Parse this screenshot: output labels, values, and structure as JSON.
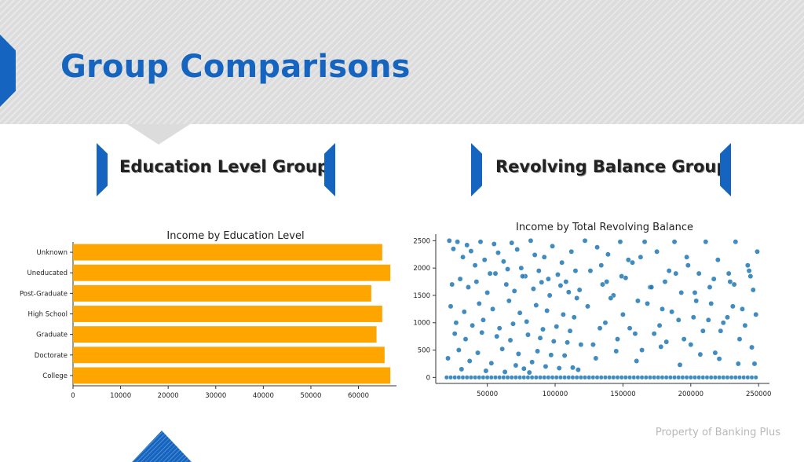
{
  "slide": {
    "title": "Group Comparisons",
    "left_section": "Education Level Group",
    "right_section": "Revolving Balance Group",
    "footer": "Property of Banking Plus"
  },
  "colors": {
    "accent": "#1565c0",
    "bar": "#ffa500",
    "scatter": "#1f77b4"
  },
  "chart_data": [
    {
      "type": "bar",
      "orientation": "horizontal",
      "title": "Income by Education Level",
      "categories": [
        "Unknown",
        "Uneducated",
        "Post-Graduate",
        "High School",
        "Graduate",
        "Doctorate",
        "College"
      ],
      "values": [
        65000,
        66700,
        62700,
        65000,
        63800,
        65500,
        66700
      ],
      "xlim": [
        0,
        68000
      ],
      "xticks": [
        0,
        10000,
        20000,
        30000,
        40000,
        50000,
        60000
      ],
      "xlabel": "",
      "ylabel": ""
    },
    {
      "type": "scatter",
      "title": "Income by Total Revolving Balance",
      "xlim": [
        12000,
        258000
      ],
      "ylim": [
        -110,
        2620
      ],
      "xticks": [
        50000,
        100000,
        150000,
        200000,
        250000
      ],
      "yticks": [
        0,
        500,
        1000,
        1500,
        2000,
        2500
      ],
      "xlabel": "",
      "ylabel": "",
      "series": [
        {
          "x": [
            22000,
            25000,
            28000,
            32000,
            35000,
            38000,
            41000,
            45000,
            48000,
            52000,
            55000,
            58000,
            62000,
            65000,
            68000,
            72000,
            75000,
            78000,
            82000,
            85000,
            88000,
            92000,
            95000,
            98000,
            102000,
            105000,
            108000,
            112000,
            115000,
            118000,
            24000,
            30000,
            36000,
            42000,
            50000,
            56000,
            64000,
            70000,
            76000,
            84000,
            90000,
            96000,
            104000,
            110000,
            116000,
            23000,
            33000,
            44000,
            54000,
            66000,
            74000,
            86000,
            94000,
            106000,
            114000,
            27000,
            39000,
            47000,
            59000,
            69000,
            79000,
            91000,
            101000,
            111000,
            26000,
            34000,
            46000,
            57000,
            67000,
            80000,
            89000,
            99000,
            109000,
            119000,
            29000,
            43000,
            61000,
            73000,
            87000,
            97000,
            107000,
            21000,
            37000,
            53000,
            71000,
            83000,
            93000,
            103000,
            113000,
            31000,
            49000,
            63000,
            77000,
            81000,
            117000
          ],
          "y": [
            2500,
            2350,
            2480,
            2200,
            2420,
            2310,
            2050,
            2480,
            2150,
            1900,
            2440,
            2280,
            2120,
            1980,
            2460,
            2340,
            2000,
            1850,
            2500,
            2240,
            1950,
            2200,
            1800,
            2400,
            1880,
            2100,
            1750,
            2300,
            1950,
            1600,
            1700,
            1800,
            1650,
            1750,
            1550,
            1900,
            1700,
            1580,
            1850,
            1620,
            1740,
            1500,
            1680,
            1560,
            1450,
            1300,
            1200,
            1350,
            1250,
            1400,
            1180,
            1320,
            1220,
            1150,
            1100,
            1000,
            950,
            1050,
            900,
            980,
            1020,
            880,
            930,
            850,
            800,
            700,
            820,
            750,
            680,
            780,
            720,
            660,
            640,
            600,
            500,
            450,
            520,
            430,
            480,
            410,
            400,
            350,
            300,
            260,
            220,
            280,
            200,
            170,
            180,
            150,
            120,
            100,
            160,
            90,
            140
          ],
          "sizes": []
        },
        {
          "x": [
            122000,
            126000,
            131000,
            135000,
            139000,
            143000,
            148000,
            152000,
            157000,
            161000,
            166000,
            170000,
            175000,
            179000,
            184000,
            188000,
            193000,
            197000,
            202000,
            206000,
            211000,
            215000,
            220000,
            224000,
            229000,
            233000,
            238000,
            242000,
            246000,
            249000,
            124000,
            133000,
            141000,
            150000,
            159000,
            168000,
            177000,
            186000,
            195000,
            204000,
            213000,
            222000,
            231000,
            240000,
            248000,
            128000,
            137000,
            146000,
            155000,
            164000,
            173000,
            182000,
            191000,
            200000,
            209000,
            218000,
            227000,
            236000,
            245000,
            130000,
            145000,
            160000,
            178000,
            192000,
            207000,
            221000,
            235000,
            247000,
            134000,
            149000,
            163000,
            181000,
            198000,
            214000,
            228000,
            243000,
            138000,
            154000,
            171000,
            189000,
            203000,
            217000,
            232000,
            244000
          ],
          "y": [
            2500,
            1950,
            2380,
            1700,
            2250,
            1500,
            2480,
            1820,
            2100,
            1400,
            2480,
            1650,
            2300,
            1250,
            1950,
            2480,
            1550,
            2200,
            1100,
            1900,
            2480,
            1350,
            2150,
            1000,
            1750,
            2480,
            1250,
            2050,
            1600,
            2300,
            1300,
            900,
            1450,
            1150,
            800,
            1350,
            950,
            1200,
            700,
            1400,
            1050,
            850,
            1300,
            950,
            1150,
            600,
            1000,
            700,
            900,
            500,
            800,
            650,
            1050,
            600,
            850,
            450,
            1100,
            700,
            550,
            350,
            480,
            300,
            560,
            230,
            420,
            340,
            250,
            250,
            2050,
            1850,
            2200,
            1750,
            2050,
            1650,
            1900,
            1950,
            1750,
            2150,
            1650,
            1900,
            1550,
            1800,
            1700,
            1850
          ],
          "sizes": []
        }
      ],
      "baseline_y": 0
    }
  ]
}
